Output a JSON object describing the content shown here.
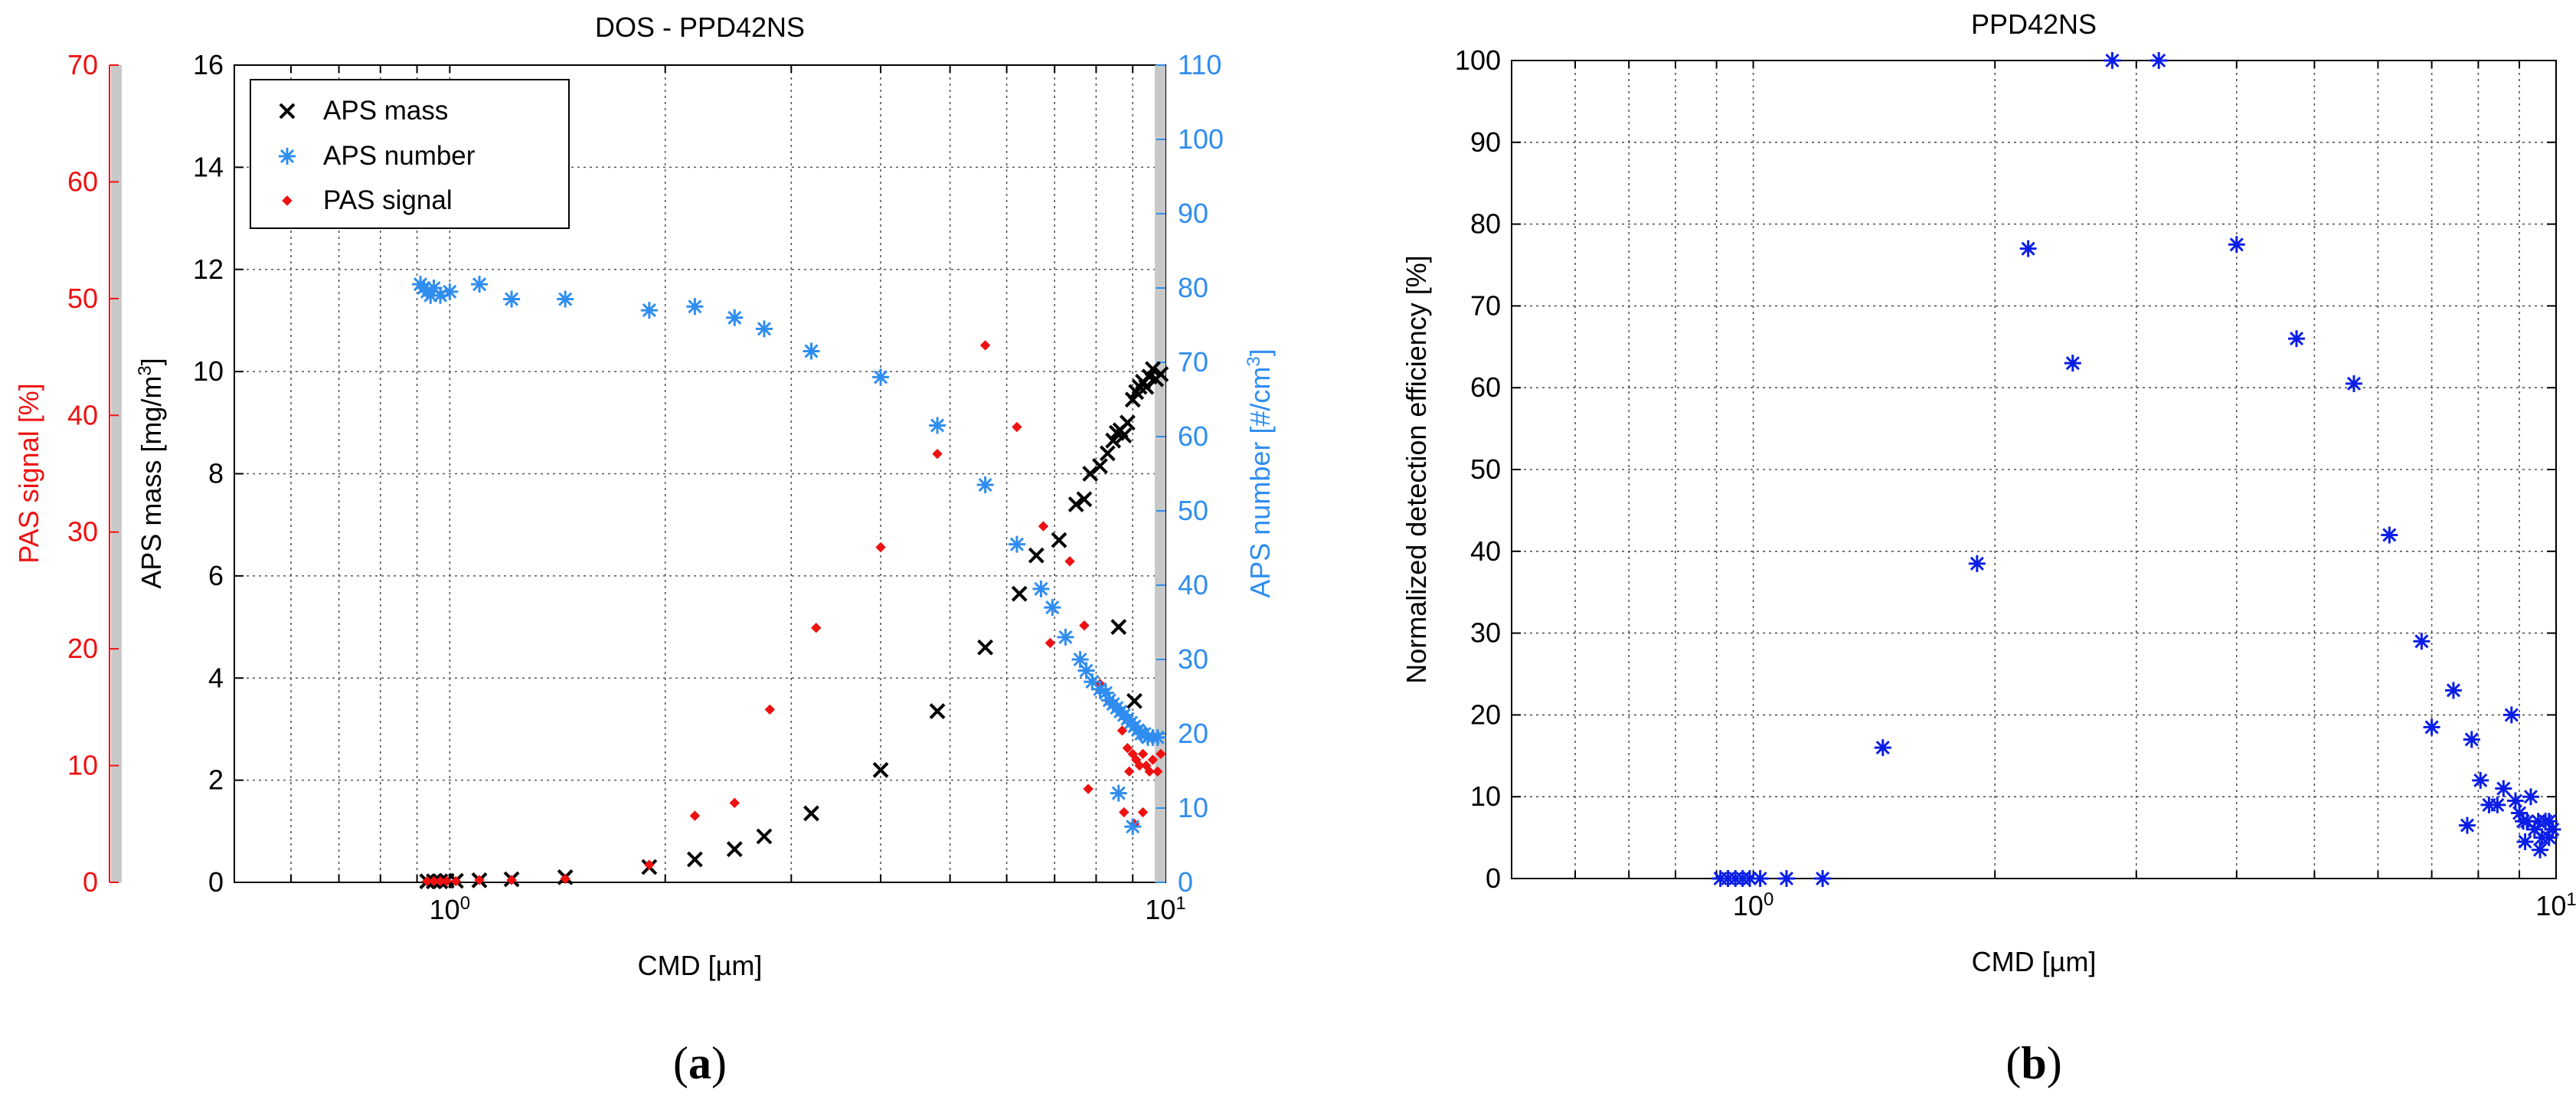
{
  "colors": {
    "black": "#000000",
    "blue_a": "#2f8df0",
    "blue_b": "#0a1ee6",
    "red": "#ee1111",
    "grid": "#555555",
    "bar": "#c8c8c8"
  },
  "chart_data": [
    {
      "panel": "a",
      "panel_label": "a",
      "type": "scatter",
      "title": "DOS - PPD42NS",
      "xlabel": "CMD [µm]",
      "xscale": "log",
      "xlim": [
        0.5,
        10
      ],
      "x_ticks": [
        {
          "v": 1,
          "base": "10",
          "exp": "0"
        },
        {
          "v": 10,
          "base": "10",
          "exp": "1"
        }
      ],
      "grid": true,
      "legend_position": "top-left",
      "axes": {
        "left_outer": {
          "label": "PAS signal [%]",
          "lim": [
            0,
            70
          ],
          "ticks": [
            "0",
            "10",
            "20",
            "30",
            "40",
            "50",
            "60",
            "70"
          ],
          "color_key": "red"
        },
        "left_inner": {
          "label_pre": "APS mass [mg/m",
          "label_sup": "3",
          "label_post": "]",
          "lim": [
            0,
            16
          ],
          "ticks": [
            "0",
            "2",
            "4",
            "6",
            "8",
            "10",
            "12",
            "14",
            "16"
          ],
          "color_key": "black"
        },
        "right": {
          "label_pre": "APS number [#/cm",
          "label_sup": "3",
          "label_post": "]",
          "lim": [
            0,
            110
          ],
          "ticks": [
            "0",
            "10",
            "20",
            "30",
            "40",
            "50",
            "60",
            "70",
            "80",
            "90",
            "100",
            "110"
          ],
          "color_key": "blue_a"
        }
      },
      "series": [
        {
          "name": "APS mass",
          "marker": "x",
          "color_key": "black",
          "axis": "left_inner",
          "x": [
            0.93,
            0.95,
            0.97,
            0.99,
            1.02,
            1.1,
            1.22,
            1.45,
            1.9,
            2.2,
            2.5,
            2.75,
            3.2,
            4.0,
            4.8,
            5.6,
            6.25,
            6.6,
            7.1,
            7.5,
            7.7,
            7.85,
            8.1,
            8.3,
            8.45,
            8.55,
            8.65,
            8.75,
            8.85,
            9.0,
            9.1,
            9.2,
            9.3,
            9.4,
            9.5,
            9.6,
            9.7,
            9.85,
            8.6,
            9.05
          ],
          "y": [
            0.02,
            0.02,
            0.02,
            0.03,
            0.03,
            0.04,
            0.06,
            0.1,
            0.3,
            0.45,
            0.65,
            0.9,
            1.35,
            2.2,
            3.35,
            4.6,
            5.65,
            6.4,
            6.7,
            7.4,
            7.5,
            8.0,
            8.15,
            8.4,
            8.65,
            8.8,
            8.85,
            8.75,
            9.0,
            9.45,
            9.6,
            9.7,
            9.8,
            9.7,
            9.9,
            10.05,
            9.85,
            9.95,
            5.0,
            3.55
          ]
        },
        {
          "name": "APS number",
          "marker": "star",
          "color_key": "blue_a",
          "axis": "right",
          "x": [
            0.91,
            0.92,
            0.93,
            0.94,
            0.95,
            0.97,
            1.0,
            1.1,
            1.22,
            1.45,
            1.9,
            2.2,
            2.5,
            2.75,
            3.2,
            4.0,
            4.8,
            5.6,
            6.2,
            6.7,
            6.95,
            7.25,
            7.6,
            7.75,
            7.9,
            8.1,
            8.25,
            8.35,
            8.45,
            8.55,
            8.65,
            8.75,
            8.85,
            8.95,
            9.05,
            9.15,
            9.25,
            9.35,
            9.45,
            9.6,
            9.75,
            8.6,
            9.0
          ],
          "y": [
            80.5,
            80.0,
            79.5,
            79.0,
            80.0,
            79.0,
            79.5,
            80.5,
            78.5,
            78.5,
            77.0,
            77.5,
            76.0,
            74.5,
            71.5,
            68.0,
            61.5,
            53.5,
            45.5,
            39.5,
            37.0,
            33.0,
            30.0,
            28.5,
            27.0,
            26.0,
            25.5,
            24.5,
            24.0,
            23.5,
            23.0,
            22.5,
            22.0,
            21.5,
            21.0,
            20.5,
            20.0,
            20.0,
            19.5,
            19.5,
            19.5,
            12.0,
            7.5
          ]
        },
        {
          "name": "PAS signal",
          "marker": "diamond",
          "color_key": "red",
          "axis": "left_outer",
          "x": [
            0.93,
            0.95,
            0.97,
            0.99,
            1.02,
            1.1,
            1.22,
            1.45,
            1.9,
            2.2,
            2.5,
            2.8,
            3.25,
            4.0,
            4.8,
            5.6,
            6.2,
            6.75,
            6.9,
            7.35,
            7.7,
            7.8,
            8.1,
            8.35,
            8.55,
            8.7,
            8.85,
            8.9,
            9.0,
            9.1,
            9.2,
            9.3,
            9.4,
            9.5,
            9.6,
            9.75,
            9.85,
            8.75,
            9.05,
            9.3
          ],
          "y": [
            0.1,
            0.1,
            0.1,
            0.1,
            0.1,
            0.2,
            0.2,
            0.3,
            1.5,
            5.7,
            6.8,
            14.8,
            21.8,
            28.7,
            36.7,
            46.0,
            39.0,
            30.5,
            20.5,
            27.5,
            22.0,
            8.0,
            17.0,
            15.5,
            15.0,
            13.0,
            11.5,
            9.5,
            11.0,
            10.5,
            10.0,
            11.0,
            10.0,
            9.5,
            10.5,
            9.5,
            11.0,
            6.0,
            5.0,
            6.0
          ]
        }
      ]
    },
    {
      "panel": "b",
      "panel_label": "b",
      "type": "scatter",
      "title": "PPD42NS",
      "xlabel": "CMD [µm]",
      "ylabel": "Normalized detection efficiency [%]",
      "xscale": "log",
      "xlim": [
        0.5,
        10
      ],
      "ylim": [
        0,
        100
      ],
      "x_ticks": [
        {
          "v": 1,
          "base": "10",
          "exp": "0"
        },
        {
          "v": 10,
          "base": "10",
          "exp": "1"
        }
      ],
      "y_ticks": [
        "0",
        "10",
        "20",
        "30",
        "40",
        "50",
        "60",
        "70",
        "80",
        "90",
        "100"
      ],
      "grid": true,
      "series": [
        {
          "name": "Normalized detection efficiency",
          "marker": "star",
          "color_key": "blue_b",
          "x": [
            0.91,
            0.93,
            0.95,
            0.97,
            0.99,
            1.02,
            1.1,
            1.22,
            1.45,
            1.9,
            2.2,
            2.5,
            2.8,
            3.2,
            4.0,
            4.75,
            5.6,
            6.2,
            6.8,
            7.0,
            7.45,
            7.85,
            8.05,
            8.25,
            8.45,
            8.6,
            8.8,
            8.9,
            9.0,
            9.1,
            9.2,
            9.3,
            9.4,
            9.5,
            9.6,
            9.7,
            9.8,
            9.9,
            7.75,
            9.15,
            9.55,
            9.8
          ],
          "y": [
            0,
            0,
            0,
            0,
            0,
            0,
            0,
            0,
            16,
            38.5,
            77,
            63,
            100,
            100,
            77.5,
            66,
            60.5,
            42,
            29,
            18.5,
            23,
            17,
            12,
            9,
            9,
            11,
            20,
            9.5,
            8,
            7,
            7,
            10,
            6,
            7,
            5,
            7,
            5,
            6,
            6.5,
            4.5,
            3.5,
            7
          ]
        }
      ]
    }
  ]
}
